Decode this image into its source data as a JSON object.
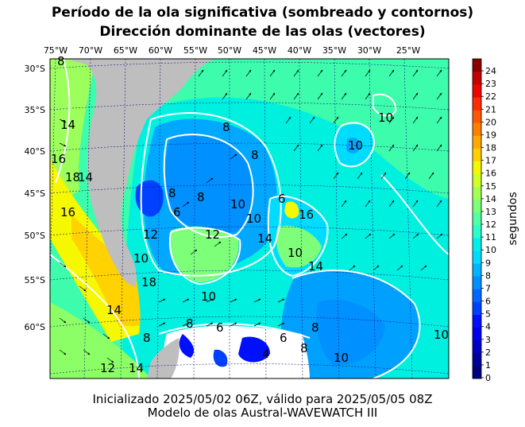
{
  "title_line1": "Período de la ola significativa (sombreado y contornos)",
  "title_line2": "Dirección dominante de las olas (vectores)",
  "footer_line1": "Inicializado 2025/05/02 06Z, válido para 2025/05/05 08Z",
  "footer_line2": "Modelo de olas Austral-WAVEWATCH III",
  "lon_labels": [
    "75°W",
    "70°W",
    "65°W",
    "60°W",
    "55°W",
    "50°W",
    "45°W",
    "40°W",
    "35°W",
    "30°W",
    "25°W"
  ],
  "lat_labels": [
    "30°S",
    "35°S",
    "40°S",
    "45°S",
    "50°S",
    "55°S",
    "60°S"
  ],
  "colorbar": {
    "label": "segundos",
    "ticks": [
      "0",
      "1",
      "2",
      "3",
      "4",
      "5",
      "6",
      "7",
      "8",
      "9",
      "10",
      "11",
      "12",
      "13",
      "14",
      "15",
      "16",
      "17",
      "18",
      "19",
      "20",
      "21",
      "22",
      "23",
      "24"
    ],
    "colors": [
      "#000080",
      "#00009c",
      "#0000c4",
      "#0000ee",
      "#0010ff",
      "#0040ff",
      "#0068ff",
      "#0090ff",
      "#00b4ff",
      "#00dcff",
      "#00f0e8",
      "#29ffce",
      "#53ffa4",
      "#7dff7a",
      "#a4ff53",
      "#ceff29",
      "#f4f802",
      "#ffd000",
      "#ffa800",
      "#ff8000",
      "#ff5800",
      "#ff2c00",
      "#f00400",
      "#c40000",
      "#8c0000"
    ]
  },
  "contour_labels": [
    "8",
    "14",
    "16",
    "18",
    "14",
    "16",
    "8",
    "8",
    "10",
    "10",
    "8",
    "6",
    "8",
    "10",
    "10",
    "16",
    "14",
    "12",
    "10",
    "6",
    "18",
    "14",
    "12",
    "10",
    "14",
    "10",
    "6",
    "8",
    "8",
    "4",
    "6",
    "8",
    "10",
    "10",
    "12",
    "14",
    "8"
  ]
}
